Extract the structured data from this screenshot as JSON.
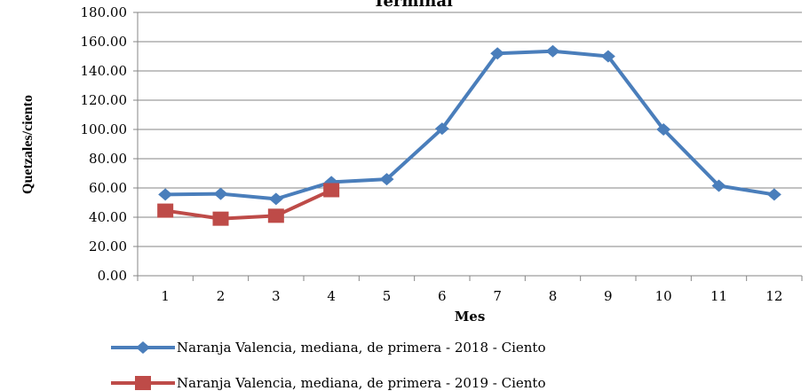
{
  "chart_data": {
    "type": "line",
    "title": "Terminal",
    "x_label": "Mes",
    "y_label": "Quetzales/ciento",
    "categories": [
      "1",
      "2",
      "3",
      "4",
      "5",
      "6",
      "7",
      "8",
      "9",
      "10",
      "11",
      "12"
    ],
    "series": [
      {
        "name": "Naranja Valencia, mediana, de primera - 2018 - Ciento",
        "color": "#4a7ebb",
        "marker": "diamond",
        "values": [
          55.5,
          56,
          52.5,
          64,
          66,
          100.5,
          152,
          153.5,
          150,
          100,
          61.5,
          55.5
        ]
      },
      {
        "name": "Naranja Valencia, mediana, de primera - 2019 - Ciento",
        "color": "#be4b48",
        "marker": "square",
        "values": [
          44.5,
          39,
          41,
          58.5,
          null,
          null,
          null,
          null,
          null,
          null,
          null,
          null
        ]
      }
    ],
    "ylim": [
      0,
      180
    ],
    "yticks": [
      {
        "value": 0,
        "label": "0.00"
      },
      {
        "value": 20,
        "label": "20.00"
      },
      {
        "value": 40,
        "label": "40.00"
      },
      {
        "value": 60,
        "label": "60.00"
      },
      {
        "value": 80,
        "label": "80.00"
      },
      {
        "value": 100,
        "label": "100.00"
      },
      {
        "value": 120,
        "label": "120.00"
      },
      {
        "value": 140,
        "label": "140.00"
      },
      {
        "value": 160,
        "label": "160.00"
      },
      {
        "value": 180,
        "label": "180.00"
      }
    ],
    "grid": true
  }
}
